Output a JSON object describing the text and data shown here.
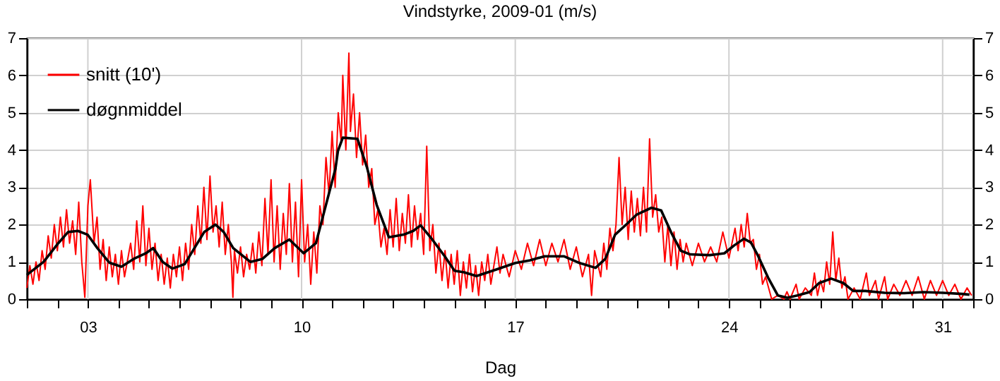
{
  "chart_data": {
    "type": "line",
    "title": "Vindstyrke, 2009-01 (m/s)",
    "xlabel": "Dag",
    "xlim": [
      1,
      32
    ],
    "xticks": [
      {
        "value": 1,
        "label": null
      },
      {
        "value": 2,
        "label": null
      },
      {
        "value": 3,
        "label": "03"
      },
      {
        "value": 4,
        "label": null
      },
      {
        "value": 5,
        "label": null
      },
      {
        "value": 6,
        "label": null
      },
      {
        "value": 7,
        "label": null
      },
      {
        "value": 8,
        "label": null
      },
      {
        "value": 9,
        "label": null
      },
      10,
      {
        "value": 11,
        "label": null
      },
      {
        "value": 12,
        "label": null
      },
      {
        "value": 13,
        "label": null
      },
      {
        "value": 14,
        "label": null
      },
      {
        "value": 15,
        "label": null
      },
      {
        "value": 16,
        "label": null
      },
      17,
      {
        "value": 18,
        "label": null
      },
      {
        "value": 19,
        "label": null
      },
      {
        "value": 20,
        "label": null
      },
      {
        "value": 21,
        "label": null
      },
      {
        "value": 22,
        "label": null
      },
      {
        "value": 23,
        "label": null
      },
      24,
      {
        "value": 25,
        "label": null
      },
      {
        "value": 26,
        "label": null
      },
      {
        "value": 27,
        "label": null
      },
      {
        "value": 28,
        "label": null
      },
      {
        "value": 29,
        "label": null
      },
      {
        "value": 30,
        "label": null
      },
      31,
      {
        "value": 32,
        "label": null
      }
    ],
    "ylim": [
      0,
      7
    ],
    "yticks": [
      0,
      1,
      2,
      3,
      4,
      5,
      6,
      7
    ],
    "y2lim": [
      0,
      7
    ],
    "y2ticks": [
      0,
      1,
      2,
      3,
      4,
      5,
      6,
      7
    ],
    "grid": true,
    "legend": "top left",
    "series": [
      {
        "name": "snitt (10')",
        "color": "#ff0000",
        "x": [
          1.0,
          1.1,
          1.2,
          1.3,
          1.4,
          1.5,
          1.6,
          1.7,
          1.8,
          1.9,
          2.0,
          2.1,
          2.2,
          2.3,
          2.4,
          2.5,
          2.6,
          2.7,
          2.8,
          2.9,
          3.0,
          3.08,
          3.2,
          3.3,
          3.4,
          3.5,
          3.6,
          3.7,
          3.8,
          3.9,
          4.0,
          4.1,
          4.2,
          4.4,
          4.5,
          4.6,
          4.7,
          4.8,
          4.9,
          5.0,
          5.1,
          5.2,
          5.3,
          5.4,
          5.5,
          5.6,
          5.7,
          5.8,
          5.9,
          6.0,
          6.1,
          6.2,
          6.3,
          6.4,
          6.5,
          6.6,
          6.7,
          6.8,
          6.9,
          7.0,
          7.1,
          7.2,
          7.3,
          7.4,
          7.5,
          7.6,
          7.7,
          7.75,
          7.8,
          7.9,
          8.0,
          8.1,
          8.2,
          8.3,
          8.4,
          8.5,
          8.6,
          8.7,
          8.8,
          8.9,
          9.0,
          9.1,
          9.2,
          9.3,
          9.4,
          9.5,
          9.6,
          9.7,
          9.8,
          9.9,
          10.0,
          10.1,
          10.2,
          10.3,
          10.4,
          10.5,
          10.6,
          10.7,
          10.8,
          10.9,
          11.0,
          11.1,
          11.2,
          11.3,
          11.35,
          11.45,
          11.55,
          11.6,
          11.7,
          11.8,
          11.9,
          12.0,
          12.1,
          12.2,
          12.3,
          12.4,
          12.5,
          12.6,
          12.7,
          12.8,
          12.9,
          13.0,
          13.1,
          13.2,
          13.3,
          13.4,
          13.5,
          13.6,
          13.7,
          13.8,
          13.9,
          14.0,
          14.1,
          14.2,
          14.3,
          14.4,
          14.5,
          14.6,
          14.7,
          14.8,
          14.9,
          15.0,
          15.1,
          15.2,
          15.3,
          15.4,
          15.5,
          15.6,
          15.7,
          15.8,
          15.9,
          16.0,
          16.1,
          16.2,
          16.4,
          16.5,
          16.6,
          16.8,
          17.0,
          17.2,
          17.4,
          17.6,
          17.8,
          18.0,
          18.2,
          18.4,
          18.6,
          18.8,
          19.0,
          19.2,
          19.4,
          19.5,
          19.6,
          19.8,
          19.9,
          20.0,
          20.1,
          20.2,
          20.3,
          20.4,
          20.5,
          20.6,
          20.7,
          20.8,
          20.9,
          21.0,
          21.1,
          21.2,
          21.3,
          21.4,
          21.5,
          21.6,
          21.7,
          21.8,
          21.9,
          22.0,
          22.1,
          22.2,
          22.3,
          22.4,
          22.5,
          22.6,
          22.8,
          23.0,
          23.2,
          23.4,
          23.6,
          23.8,
          24.0,
          24.2,
          24.3,
          24.4,
          24.5,
          24.6,
          24.7,
          24.8,
          24.9,
          25.0,
          25.1,
          25.2,
          25.4,
          25.6,
          25.8,
          25.9,
          26.0,
          26.2,
          26.3,
          26.5,
          26.7,
          26.8,
          26.9,
          27.0,
          27.1,
          27.2,
          27.3,
          27.4,
          27.5,
          27.6,
          27.7,
          27.8,
          27.9,
          28.1,
          28.3,
          28.5,
          28.6,
          28.8,
          28.9,
          29.1,
          29.2,
          29.4,
          29.6,
          29.8,
          30.0,
          30.2,
          30.4,
          30.6,
          30.8,
          31.0,
          31.2,
          31.4,
          31.6,
          31.8,
          31.95
        ],
        "values": [
          0.3,
          0.9,
          0.4,
          1.0,
          0.5,
          1.3,
          0.8,
          1.7,
          1.1,
          2.0,
          1.3,
          2.2,
          1.4,
          2.4,
          1.5,
          2.1,
          1.2,
          2.6,
          1.0,
          0.05,
          2.5,
          3.2,
          1.5,
          2.2,
          0.8,
          1.6,
          0.5,
          1.4,
          0.6,
          1.2,
          0.4,
          1.3,
          0.6,
          1.5,
          0.8,
          2.1,
          1.0,
          2.5,
          0.9,
          1.9,
          0.8,
          1.5,
          0.5,
          1.2,
          0.4,
          1.1,
          0.3,
          1.2,
          0.6,
          1.4,
          0.5,
          1.5,
          0.8,
          2.0,
          1.2,
          2.5,
          1.5,
          3.0,
          1.6,
          3.3,
          1.8,
          2.5,
          1.4,
          2.6,
          1.2,
          2.0,
          1.0,
          0.05,
          1.3,
          0.7,
          1.4,
          0.6,
          1.2,
          0.8,
          1.5,
          0.7,
          1.8,
          0.9,
          2.7,
          1.2,
          3.2,
          1.0,
          2.5,
          0.8,
          2.3,
          1.2,
          3.1,
          1.0,
          2.6,
          0.6,
          3.2,
          1.0,
          2.0,
          0.4,
          1.8,
          0.7,
          2.5,
          2.0,
          3.8,
          2.8,
          4.5,
          3.0,
          5.0,
          4.2,
          6.0,
          4.0,
          6.6,
          4.5,
          5.5,
          3.8,
          5.0,
          3.6,
          4.4,
          3.0,
          3.5,
          2.0,
          2.4,
          1.4,
          1.9,
          1.2,
          2.4,
          1.4,
          2.7,
          1.3,
          2.3,
          1.5,
          2.8,
          1.4,
          2.5,
          1.6,
          2.3,
          1.2,
          4.1,
          1.3,
          2.0,
          0.7,
          1.5,
          0.5,
          1.3,
          0.3,
          1.2,
          0.4,
          1.3,
          0.1,
          1.0,
          0.3,
          1.2,
          0.2,
          0.9,
          0.1,
          1.0,
          0.5,
          1.2,
          0.4,
          1.4,
          0.7,
          1.2,
          0.6,
          1.3,
          0.8,
          1.5,
          0.9,
          1.6,
          0.9,
          1.5,
          1.0,
          1.6,
          0.8,
          1.4,
          0.6,
          1.2,
          0.1,
          1.3,
          0.6,
          1.5,
          0.8,
          1.9,
          1.3,
          2.0,
          3.8,
          2.0,
          3.0,
          1.6,
          2.9,
          1.8,
          2.7,
          1.7,
          3.0,
          1.8,
          4.3,
          2.2,
          2.8,
          1.8,
          2.2,
          1.0,
          2.0,
          0.9,
          1.8,
          0.8,
          1.6,
          1.0,
          1.5,
          0.9,
          1.5,
          1.0,
          1.4,
          1.0,
          1.8,
          1.1,
          1.9,
          1.3,
          2.0,
          1.4,
          2.3,
          1.5,
          1.6,
          0.8,
          1.2,
          0.4,
          0.6,
          0.0,
          0.1,
          0.0,
          0.2,
          0.0,
          0.4,
          0.0,
          0.3,
          0.1,
          0.7,
          0.1,
          0.5,
          0.2,
          1.0,
          0.4,
          1.8,
          0.5,
          1.1,
          0.3,
          0.6,
          0.0,
          0.3,
          0.0,
          0.7,
          0.1,
          0.5,
          0.0,
          0.6,
          0.0,
          0.4,
          0.1,
          0.5,
          0.1,
          0.6,
          0.0,
          0.5,
          0.1,
          0.5,
          0.1,
          0.4,
          0.0,
          0.3,
          0.1
        ]
      },
      {
        "name": "døgnmiddel",
        "color": "#000000",
        "x": [
          1.0,
          1.55,
          2.03,
          2.35,
          2.67,
          2.99,
          3.31,
          3.7,
          4.1,
          4.5,
          4.9,
          5.14,
          5.45,
          5.77,
          6.17,
          6.49,
          6.81,
          7.18,
          7.45,
          7.76,
          8.32,
          8.72,
          9.12,
          9.6,
          10.07,
          10.47,
          10.79,
          11.11,
          11.19,
          11.35,
          11.83,
          12.14,
          12.46,
          12.86,
          13.34,
          13.66,
          13.9,
          14.29,
          14.69,
          15.01,
          15.33,
          15.73,
          16.36,
          17.0,
          17.48,
          17.96,
          18.59,
          19.07,
          19.63,
          19.95,
          20.27,
          20.66,
          20.98,
          21.46,
          21.78,
          22.1,
          22.42,
          22.73,
          23.37,
          23.85,
          24.17,
          24.49,
          24.72,
          24.96,
          25.28,
          25.6,
          25.92,
          26.24,
          26.64,
          26.95,
          27.35,
          27.75,
          28.07,
          28.47,
          29.1,
          29.74,
          30.38,
          31.01,
          31.65,
          31.88
        ],
        "values": [
          0.65,
          1.0,
          1.5,
          1.8,
          1.83,
          1.73,
          1.37,
          0.98,
          0.87,
          1.08,
          1.23,
          1.37,
          1.0,
          0.82,
          0.94,
          1.37,
          1.8,
          2.0,
          1.8,
          1.37,
          1.0,
          1.08,
          1.37,
          1.6,
          1.23,
          1.5,
          2.5,
          3.5,
          3.97,
          4.33,
          4.3,
          3.54,
          2.53,
          1.66,
          1.73,
          1.83,
          1.98,
          1.59,
          1.15,
          0.76,
          0.72,
          0.62,
          0.79,
          0.97,
          1.04,
          1.15,
          1.15,
          0.98,
          0.84,
          1.08,
          1.73,
          2.02,
          2.27,
          2.45,
          2.38,
          1.8,
          1.3,
          1.2,
          1.18,
          1.23,
          1.44,
          1.62,
          1.52,
          1.15,
          0.58,
          0.1,
          0.04,
          0.1,
          0.19,
          0.43,
          0.55,
          0.43,
          0.22,
          0.22,
          0.17,
          0.16,
          0.19,
          0.17,
          0.14,
          0.12
        ]
      }
    ]
  }
}
